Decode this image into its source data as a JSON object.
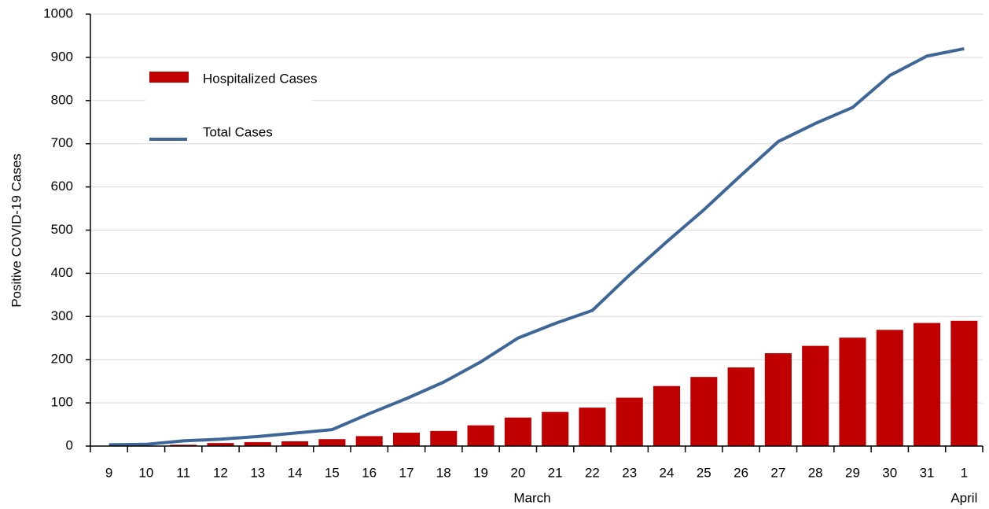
{
  "chart_data": {
    "type": "bar",
    "y_label": "Positive COVID-19 Cases",
    "categories": [
      "9",
      "10",
      "11",
      "12",
      "13",
      "14",
      "15",
      "16",
      "17",
      "18",
      "19",
      "20",
      "21",
      "22",
      "23",
      "24",
      "25",
      "26",
      "27",
      "28",
      "29",
      "30",
      "31",
      "1"
    ],
    "x_groups": [
      {
        "label": "March"
      },
      {
        "label": "April"
      }
    ],
    "series": [
      {
        "name": "Hospitalized Cases",
        "type": "bar",
        "color": "#c00000",
        "values": [
          0,
          0,
          3,
          7,
          9,
          11,
          16,
          23,
          31,
          35,
          48,
          66,
          79,
          89,
          112,
          139,
          160,
          182,
          215,
          232,
          251,
          269,
          285,
          290
        ]
      },
      {
        "name": "Total Cases",
        "type": "line",
        "color": "#3f6698",
        "values": [
          3,
          4,
          12,
          16,
          22,
          30,
          38,
          75,
          110,
          148,
          195,
          250,
          284,
          314,
          396,
          473,
          547,
          627,
          705,
          747,
          784,
          858,
          903,
          920
        ]
      }
    ],
    "ylim": [
      0,
      1000
    ],
    "yticks": [
      0,
      100,
      200,
      300,
      400,
      500,
      600,
      700,
      800,
      900,
      1000
    ],
    "grid": true
  }
}
